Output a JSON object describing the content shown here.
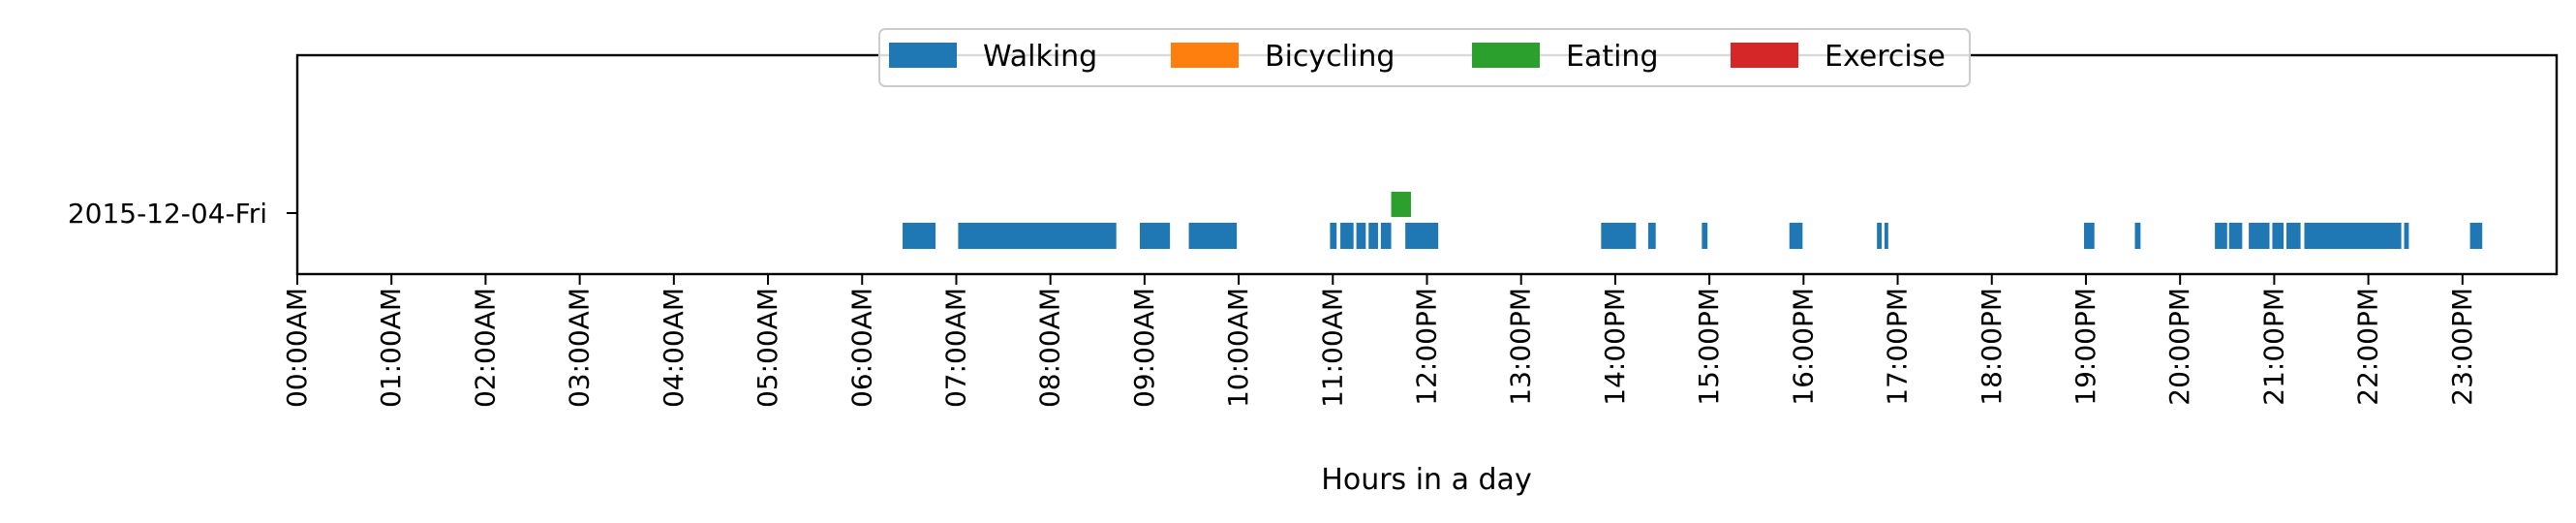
{
  "chart_data": {
    "type": "bar",
    "subtype": "broken-barh timeline",
    "title": "",
    "xlabel": "Hours in a day",
    "ylabel": "",
    "xlim": [
      0,
      24
    ],
    "x_ticks": [
      0,
      1,
      2,
      3,
      4,
      5,
      6,
      7,
      8,
      9,
      10,
      11,
      12,
      13,
      14,
      15,
      16,
      17,
      18,
      19,
      20,
      21,
      22,
      23
    ],
    "x_tick_labels": [
      "00:00AM",
      "01:00AM",
      "02:00AM",
      "03:00AM",
      "04:00AM",
      "05:00AM",
      "06:00AM",
      "07:00AM",
      "08:00AM",
      "09:00AM",
      "10:00AM",
      "11:00AM",
      "12:00PM",
      "13:00PM",
      "14:00PM",
      "15:00PM",
      "16:00PM",
      "17:00PM",
      "18:00PM",
      "19:00PM",
      "20:00PM",
      "21:00PM",
      "22:00PM",
      "23:00PM"
    ],
    "categories": [
      "2015-12-04-Fri"
    ],
    "legend": {
      "placement": "top-center",
      "entries": [
        {
          "name": "Walking",
          "color": "#1f77b4"
        },
        {
          "name": "Bicycling",
          "color": "#ff7f0e"
        },
        {
          "name": "Eating",
          "color": "#2ca02c"
        },
        {
          "name": "Exercise",
          "color": "#d62728"
        }
      ]
    },
    "series": [
      {
        "name": "Walking",
        "color": "#1f77b4",
        "intervals": [
          [
            6.43,
            6.78
          ],
          [
            7.02,
            8.7
          ],
          [
            8.95,
            9.27
          ],
          [
            9.47,
            9.98
          ],
          [
            10.97,
            11.04
          ],
          [
            11.08,
            11.22
          ],
          [
            11.25,
            11.35
          ],
          [
            11.38,
            11.48
          ],
          [
            11.51,
            11.62
          ],
          [
            11.77,
            12.12
          ],
          [
            13.85,
            14.22
          ],
          [
            14.35,
            14.43
          ],
          [
            14.92,
            14.98
          ],
          [
            15.85,
            15.99
          ],
          [
            16.78,
            16.83
          ],
          [
            16.86,
            16.9
          ],
          [
            18.98,
            19.09
          ],
          [
            19.52,
            19.58
          ],
          [
            20.37,
            20.5
          ],
          [
            20.52,
            20.66
          ],
          [
            20.73,
            20.95
          ],
          [
            20.98,
            21.1
          ],
          [
            21.13,
            21.28
          ],
          [
            21.32,
            22.35
          ],
          [
            22.38,
            22.43
          ],
          [
            23.08,
            23.21
          ]
        ]
      },
      {
        "name": "Eating",
        "color": "#2ca02c",
        "intervals": [
          [
            11.62,
            11.83
          ]
        ]
      }
    ]
  }
}
